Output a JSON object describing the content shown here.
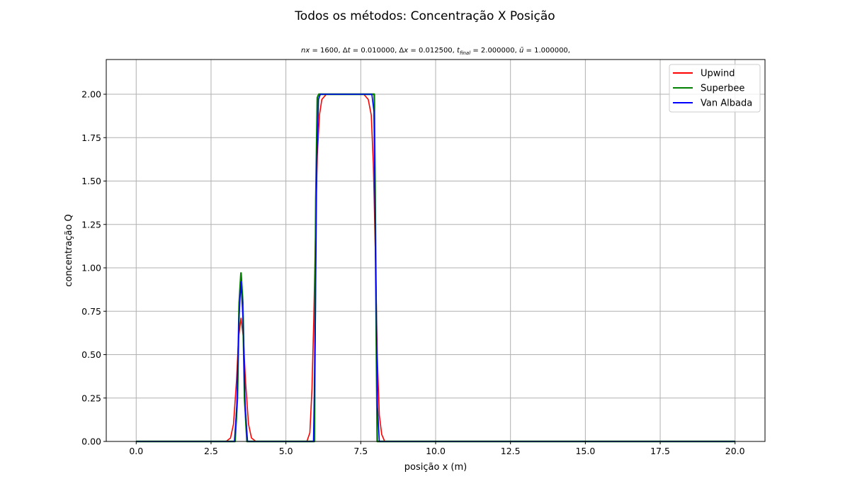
{
  "chart_data": {
    "type": "line",
    "title": "Todos os métodos: Concentração X Posição",
    "subtitle": {
      "nx": "1600",
      "dt": "0.010000",
      "dx": "0.012500",
      "tfinal": "2.000000",
      "ubar": "1.000000"
    },
    "xlabel": "posição x (m)",
    "ylabel": "concentração Q",
    "xlim": [
      -1.0,
      21.0
    ],
    "ylim": [
      0.0,
      2.2
    ],
    "xticks": [
      "0.0",
      "2.5",
      "5.0",
      "7.5",
      "10.0",
      "12.5",
      "15.0",
      "17.5",
      "20.0"
    ],
    "yticks": [
      "0.00",
      "0.25",
      "0.50",
      "0.75",
      "1.00",
      "1.25",
      "1.50",
      "1.75",
      "2.00"
    ],
    "grid": true,
    "legend_position": "top-right",
    "series": [
      {
        "name": "Upwind",
        "color": "#ff0000",
        "x": [
          0.0,
          3.0,
          3.15,
          3.25,
          3.35,
          3.42,
          3.5,
          3.58,
          3.65,
          3.75,
          3.85,
          4.0,
          5.7,
          5.8,
          5.87,
          5.93,
          6.0,
          6.05,
          6.12,
          6.2,
          6.35,
          7.6,
          7.75,
          7.85,
          7.92,
          8.0,
          8.05,
          8.12,
          8.2,
          8.3,
          20.0
        ],
        "y": [
          0.0,
          0.0,
          0.02,
          0.1,
          0.35,
          0.6,
          0.71,
          0.6,
          0.35,
          0.1,
          0.02,
          0.0,
          0.0,
          0.05,
          0.3,
          0.7,
          1.3,
          1.65,
          1.88,
          1.97,
          2.0,
          2.0,
          1.97,
          1.88,
          1.6,
          1.0,
          0.5,
          0.15,
          0.04,
          0.0,
          0.0
        ],
        "stroke_width": 1.6
      },
      {
        "name": "Superbee",
        "color": "#008000",
        "x": [
          0.0,
          3.3,
          3.38,
          3.44,
          3.5,
          3.56,
          3.62,
          3.7,
          5.95,
          6.0,
          6.05,
          6.1,
          7.95,
          8.0,
          8.05,
          20.0
        ],
        "y": [
          0.0,
          0.0,
          0.25,
          0.8,
          0.97,
          0.8,
          0.25,
          0.0,
          0.0,
          1.4,
          1.98,
          2.0,
          2.0,
          1.0,
          0.0,
          0.0
        ],
        "stroke_width": 2.4
      },
      {
        "name": "Van Albada",
        "color": "#0000ff",
        "x": [
          0.0,
          3.28,
          3.36,
          3.43,
          3.5,
          3.57,
          3.64,
          3.72,
          5.92,
          5.98,
          6.03,
          6.09,
          6.15,
          7.87,
          7.94,
          8.0,
          8.06,
          8.12,
          20.0
        ],
        "y": [
          0.0,
          0.0,
          0.2,
          0.7,
          0.92,
          0.7,
          0.2,
          0.0,
          0.0,
          0.6,
          1.6,
          1.97,
          2.0,
          2.0,
          1.9,
          1.0,
          0.2,
          0.0,
          0.0
        ],
        "stroke_width": 1.6
      }
    ]
  }
}
